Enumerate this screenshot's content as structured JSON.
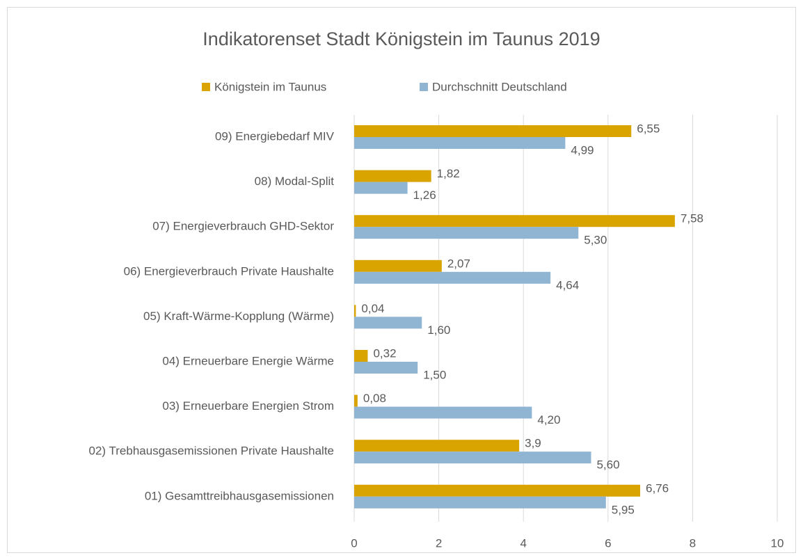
{
  "chart_data": {
    "type": "hbar",
    "title": "Indikatorenset Stadt Königstein im Taunus 2019",
    "categories": [
      "09) Energiebedarf MIV",
      "08) Modal-Split",
      "07) Energieverbrauch GHD-Sektor",
      "06) Energieverbrauch Private Haushalte",
      "05) Kraft-Wärme-Kopplung (Wärme)",
      "04) Erneuerbare Energie Wärme",
      "03) Erneuerbare Energien Strom",
      "02) Trebhausgasemissionen Private Haushalte",
      "01) Gesamttreibhausgasemissionen"
    ],
    "series": [
      {
        "name": "Königstein im Taunus",
        "color": "#d9a300",
        "values": [
          6.55,
          1.82,
          7.58,
          2.07,
          0.04,
          0.32,
          0.08,
          3.9,
          6.76
        ],
        "value_labels": [
          "6,55",
          "1,82",
          "7,58",
          "2,07",
          "0,04",
          "0,32",
          "0,08",
          "3,9",
          "6,76"
        ]
      },
      {
        "name": "Durchschnitt Deutschland",
        "color": "#8fb5d3",
        "values": [
          4.99,
          1.26,
          5.3,
          4.64,
          1.6,
          1.5,
          4.2,
          5.6,
          5.95
        ],
        "value_labels": [
          "4,99",
          "1,26",
          "5,30",
          "4,64",
          "1,60",
          "1,50",
          "4,20",
          "5,60",
          "5,95"
        ]
      }
    ],
    "xlim": [
      0,
      10
    ],
    "xticks": [
      0,
      2,
      4,
      6,
      8,
      10
    ],
    "grid": true,
    "legend": "top"
  }
}
